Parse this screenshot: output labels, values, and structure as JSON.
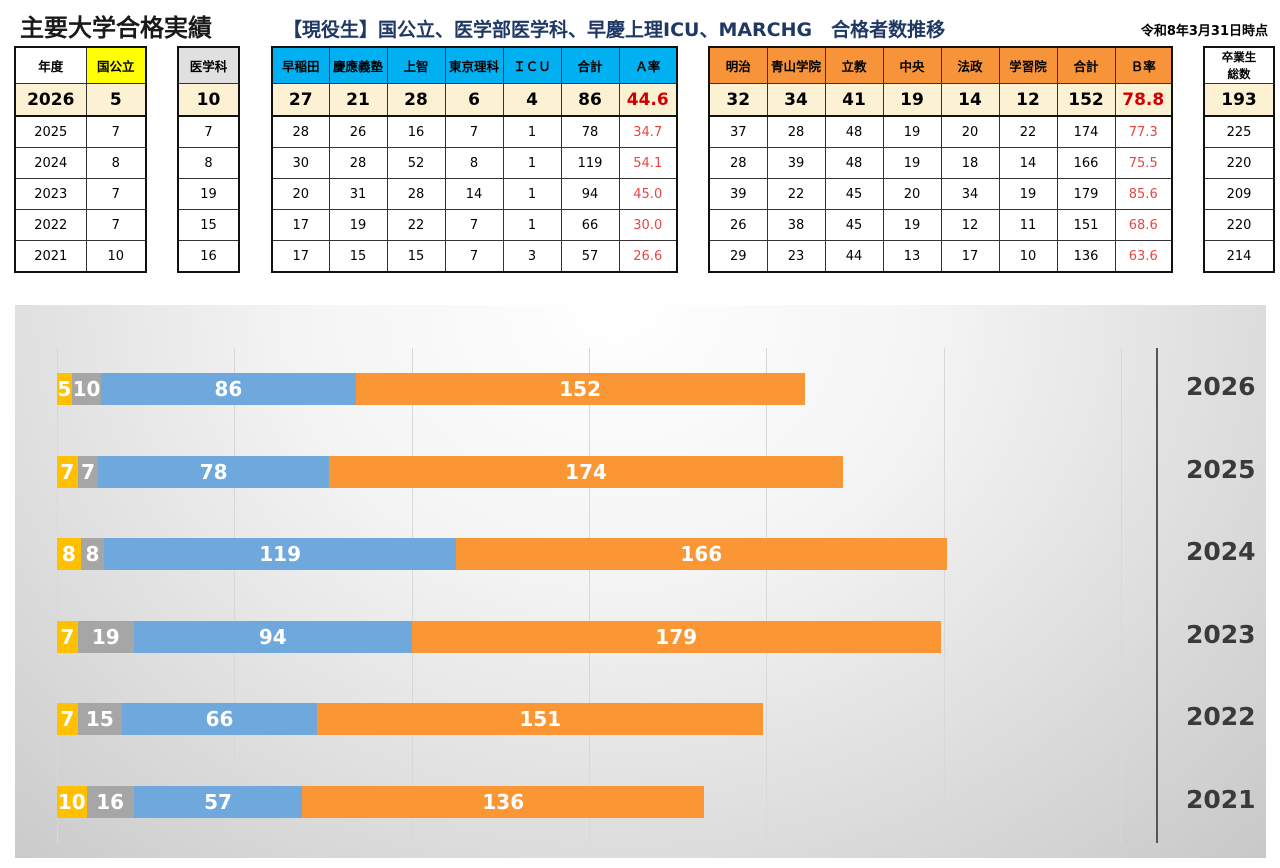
{
  "title": "主要大学合格実績",
  "subtitle": "【現役生】国公立、医学部医学科、早慶上理ICU、MARCHG　合格者数推移",
  "as_of": "令和8年3月31日時点",
  "colors": {
    "kokkoritsu": "#ffc000",
    "igaku": "#a6a6a6",
    "soukei": "#6fa8dc",
    "march": "#fb9634",
    "red": "#e84646"
  },
  "table_kokko": {
    "headers": [
      "年度",
      "国公立"
    ],
    "rows": [
      [
        "2026",
        "5"
      ],
      [
        "2025",
        "7"
      ],
      [
        "2024",
        "8"
      ],
      [
        "2023",
        "7"
      ],
      [
        "2022",
        "7"
      ],
      [
        "2021",
        "10"
      ]
    ]
  },
  "table_igaku": {
    "headers": [
      "医学科"
    ],
    "rows": [
      [
        "10"
      ],
      [
        "7"
      ],
      [
        "8"
      ],
      [
        "19"
      ],
      [
        "15"
      ],
      [
        "16"
      ]
    ]
  },
  "table_a": {
    "headers": [
      "早稲田",
      "慶應義塾",
      "上智",
      "東京理科",
      "ＩＣＵ",
      "合計",
      "Ａ率"
    ],
    "rows": [
      [
        "27",
        "21",
        "28",
        "6",
        "4",
        "86",
        "44.6"
      ],
      [
        "28",
        "26",
        "16",
        "7",
        "1",
        "78",
        "34.7"
      ],
      [
        "30",
        "28",
        "52",
        "8",
        "1",
        "119",
        "54.1"
      ],
      [
        "20",
        "31",
        "28",
        "14",
        "1",
        "94",
        "45.0"
      ],
      [
        "17",
        "19",
        "22",
        "7",
        "1",
        "66",
        "30.0"
      ],
      [
        "17",
        "15",
        "15",
        "7",
        "3",
        "57",
        "26.6"
      ]
    ]
  },
  "table_b": {
    "headers": [
      "明治",
      "青山学院",
      "立教",
      "中央",
      "法政",
      "学習院",
      "合計",
      "Ｂ率"
    ],
    "rows": [
      [
        "32",
        "34",
        "41",
        "19",
        "14",
        "12",
        "152",
        "78.8"
      ],
      [
        "37",
        "28",
        "48",
        "19",
        "20",
        "22",
        "174",
        "77.3"
      ],
      [
        "28",
        "39",
        "48",
        "19",
        "18",
        "14",
        "166",
        "75.5"
      ],
      [
        "39",
        "22",
        "45",
        "20",
        "34",
        "19",
        "179",
        "85.6"
      ],
      [
        "26",
        "38",
        "45",
        "19",
        "12",
        "11",
        "151",
        "68.6"
      ],
      [
        "29",
        "23",
        "44",
        "13",
        "17",
        "10",
        "136",
        "63.6"
      ]
    ]
  },
  "table_grad": {
    "headers": [
      "卒業生",
      "総数"
    ],
    "rows": [
      [
        "193"
      ],
      [
        "225"
      ],
      [
        "220"
      ],
      [
        "209"
      ],
      [
        "220"
      ],
      [
        "214"
      ]
    ]
  },
  "chart_data": {
    "type": "bar",
    "orientation": "horizontal",
    "stacked": true,
    "categories": [
      "2026",
      "2025",
      "2024",
      "2023",
      "2022",
      "2021"
    ],
    "series": [
      {
        "values": [
          5,
          7,
          8,
          7,
          7,
          10
        ]
      },
      {
        "values": [
          10,
          7,
          8,
          19,
          15,
          16
        ]
      },
      {
        "values": [
          86,
          78,
          119,
          94,
          66,
          57
        ]
      },
      {
        "values": [
          152,
          174,
          166,
          179,
          151,
          136
        ]
      }
    ],
    "xlim": [
      0,
      360
    ],
    "grid": true,
    "legend": "none"
  }
}
